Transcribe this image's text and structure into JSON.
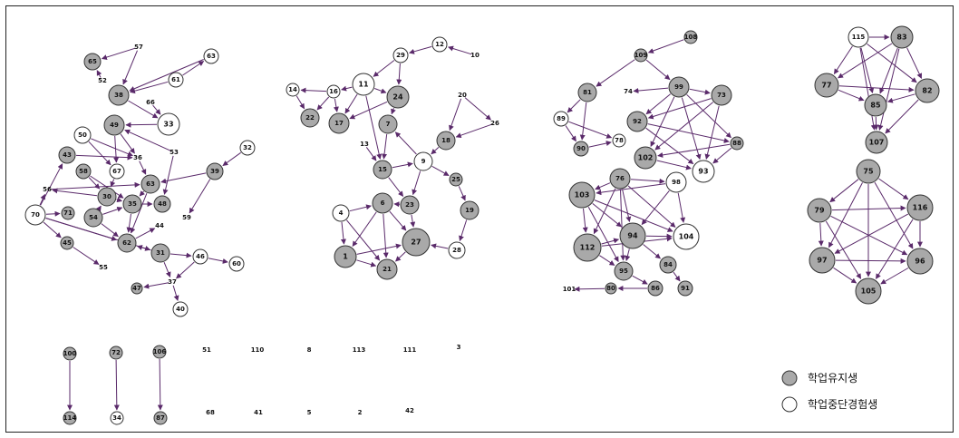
{
  "diagram": {
    "colors": {
      "retained": "#a9a9a9",
      "dropout": "#ffffff",
      "edge": "#5a2a6a"
    },
    "nodes": [
      {
        "id": "57",
        "t": "none"
      },
      {
        "id": "65",
        "t": "retained"
      },
      {
        "id": "63b",
        "label": "63",
        "t": "dropout"
      },
      {
        "id": "52",
        "t": "none"
      },
      {
        "id": "38",
        "t": "retained"
      },
      {
        "id": "61",
        "t": "dropout"
      },
      {
        "id": "66",
        "t": "none"
      },
      {
        "id": "33",
        "t": "dropout"
      },
      {
        "id": "49",
        "t": "retained"
      },
      {
        "id": "50",
        "t": "dropout"
      },
      {
        "id": "36",
        "t": "none"
      },
      {
        "id": "53",
        "t": "none"
      },
      {
        "id": "32",
        "t": "dropout"
      },
      {
        "id": "39",
        "t": "retained"
      },
      {
        "id": "43",
        "t": "retained"
      },
      {
        "id": "58",
        "t": "retained"
      },
      {
        "id": "67",
        "t": "dropout"
      },
      {
        "id": "63",
        "t": "retained"
      },
      {
        "id": "56",
        "t": "none"
      },
      {
        "id": "30",
        "t": "retained"
      },
      {
        "id": "35",
        "t": "retained"
      },
      {
        "id": "48",
        "t": "retained"
      },
      {
        "id": "54",
        "t": "retained"
      },
      {
        "id": "70",
        "t": "dropout"
      },
      {
        "id": "71",
        "t": "retained"
      },
      {
        "id": "64",
        "t": "retained"
      },
      {
        "id": "44",
        "t": "none"
      },
      {
        "id": "62",
        "t": "retained"
      },
      {
        "id": "45",
        "t": "retained"
      },
      {
        "id": "55",
        "t": "none"
      },
      {
        "id": "31",
        "t": "retained"
      },
      {
        "id": "46",
        "t": "dropout"
      },
      {
        "id": "60",
        "t": "dropout"
      },
      {
        "id": "59",
        "t": "none"
      },
      {
        "id": "47",
        "t": "retained"
      },
      {
        "id": "37",
        "t": "none"
      },
      {
        "id": "40",
        "t": "dropout"
      },
      {
        "id": "12",
        "t": "dropout"
      },
      {
        "id": "10",
        "t": "none"
      },
      {
        "id": "29",
        "t": "dropout"
      },
      {
        "id": "14",
        "t": "dropout"
      },
      {
        "id": "16",
        "t": "dropout"
      },
      {
        "id": "11",
        "t": "dropout"
      },
      {
        "id": "24",
        "t": "retained"
      },
      {
        "id": "22",
        "t": "retained"
      },
      {
        "id": "17",
        "t": "retained"
      },
      {
        "id": "7",
        "t": "retained"
      },
      {
        "id": "20",
        "t": "none"
      },
      {
        "id": "26",
        "t": "none"
      },
      {
        "id": "18",
        "t": "retained"
      },
      {
        "id": "13",
        "t": "none"
      },
      {
        "id": "9",
        "t": "dropout"
      },
      {
        "id": "15",
        "t": "retained"
      },
      {
        "id": "25",
        "t": "retained"
      },
      {
        "id": "4",
        "t": "dropout"
      },
      {
        "id": "6",
        "t": "retained"
      },
      {
        "id": "23",
        "t": "retained"
      },
      {
        "id": "19",
        "t": "retained"
      },
      {
        "id": "27",
        "t": "retained"
      },
      {
        "id": "28",
        "t": "dropout"
      },
      {
        "id": "1",
        "t": "retained"
      },
      {
        "id": "21",
        "t": "retained"
      },
      {
        "id": "108",
        "t": "retained"
      },
      {
        "id": "109",
        "t": "retained"
      },
      {
        "id": "81",
        "t": "retained"
      },
      {
        "id": "99",
        "t": "retained"
      },
      {
        "id": "74",
        "t": "none"
      },
      {
        "id": "73",
        "t": "retained"
      },
      {
        "id": "89",
        "t": "dropout"
      },
      {
        "id": "92",
        "t": "retained"
      },
      {
        "id": "90",
        "t": "retained"
      },
      {
        "id": "78",
        "t": "dropout"
      },
      {
        "id": "88",
        "t": "retained"
      },
      {
        "id": "102",
        "t": "retained"
      },
      {
        "id": "93",
        "t": "dropout"
      },
      {
        "id": "76",
        "t": "retained"
      },
      {
        "id": "98",
        "t": "dropout"
      },
      {
        "id": "103",
        "t": "retained"
      },
      {
        "id": "104",
        "t": "dropout"
      },
      {
        "id": "94",
        "t": "retained"
      },
      {
        "id": "112",
        "t": "retained"
      },
      {
        "id": "95",
        "t": "retained"
      },
      {
        "id": "84",
        "t": "retained"
      },
      {
        "id": "91",
        "t": "retained"
      },
      {
        "id": "101",
        "t": "none"
      },
      {
        "id": "80",
        "t": "retained"
      },
      {
        "id": "86",
        "t": "retained"
      },
      {
        "id": "115",
        "t": "dropout"
      },
      {
        "id": "83",
        "t": "retained"
      },
      {
        "id": "77",
        "t": "retained"
      },
      {
        "id": "82",
        "t": "retained"
      },
      {
        "id": "85",
        "t": "retained"
      },
      {
        "id": "107",
        "t": "retained"
      },
      {
        "id": "75",
        "t": "retained"
      },
      {
        "id": "79",
        "t": "retained"
      },
      {
        "id": "116",
        "t": "retained"
      },
      {
        "id": "97",
        "t": "retained"
      },
      {
        "id": "96",
        "t": "retained"
      },
      {
        "id": "105",
        "t": "retained"
      },
      {
        "id": "100",
        "t": "retained"
      },
      {
        "id": "114",
        "t": "retained"
      },
      {
        "id": "72",
        "t": "retained"
      },
      {
        "id": "34",
        "t": "dropout"
      },
      {
        "id": "106",
        "t": "retained"
      },
      {
        "id": "87",
        "t": "retained"
      }
    ],
    "isolates": [
      "51",
      "110",
      "8",
      "113",
      "111",
      "3",
      "68",
      "41",
      "5",
      "2",
      "42"
    ],
    "edges": [
      [
        "57",
        "65"
      ],
      [
        "57",
        "38"
      ],
      [
        "52",
        "65"
      ],
      [
        "63b",
        "38"
      ],
      [
        "61",
        "63b"
      ],
      [
        "61",
        "38"
      ],
      [
        "38",
        "33"
      ],
      [
        "66",
        "33"
      ],
      [
        "33",
        "49"
      ],
      [
        "49",
        "36"
      ],
      [
        "50",
        "36"
      ],
      [
        "36",
        "63"
      ],
      [
        "53",
        "49"
      ],
      [
        "53",
        "48"
      ],
      [
        "32",
        "39"
      ],
      [
        "39",
        "63"
      ],
      [
        "43",
        "36"
      ],
      [
        "50",
        "67"
      ],
      [
        "49",
        "67"
      ],
      [
        "67",
        "30"
      ],
      [
        "58",
        "30"
      ],
      [
        "58",
        "35"
      ],
      [
        "30",
        "35"
      ],
      [
        "30",
        "56"
      ],
      [
        "56",
        "63"
      ],
      [
        "63",
        "35"
      ],
      [
        "63",
        "62"
      ],
      [
        "35",
        "48"
      ],
      [
        "54",
        "30"
      ],
      [
        "54",
        "62"
      ],
      [
        "54",
        "35"
      ],
      [
        "39",
        "59"
      ],
      [
        "70",
        "43"
      ],
      [
        "70",
        "56"
      ],
      [
        "70",
        "71"
      ],
      [
        "70",
        "45"
      ],
      [
        "70",
        "62"
      ],
      [
        "70",
        "31"
      ],
      [
        "45",
        "55"
      ],
      [
        "62",
        "44"
      ],
      [
        "31",
        "62"
      ],
      [
        "31",
        "46"
      ],
      [
        "46",
        "60"
      ],
      [
        "46",
        "37"
      ],
      [
        "37",
        "47"
      ],
      [
        "37",
        "40"
      ],
      [
        "31",
        "37"
      ],
      [
        "35",
        "62"
      ],
      [
        "10",
        "12"
      ],
      [
        "12",
        "29"
      ],
      [
        "29",
        "24"
      ],
      [
        "29",
        "11"
      ],
      [
        "16",
        "14"
      ],
      [
        "14",
        "22"
      ],
      [
        "16",
        "22"
      ],
      [
        "16",
        "17"
      ],
      [
        "11",
        "17"
      ],
      [
        "11",
        "24"
      ],
      [
        "11",
        "16"
      ],
      [
        "24",
        "17"
      ],
      [
        "24",
        "7"
      ],
      [
        "11",
        "15"
      ],
      [
        "7",
        "15"
      ],
      [
        "9",
        "7"
      ],
      [
        "20",
        "18"
      ],
      [
        "20",
        "26"
      ],
      [
        "26",
        "18"
      ],
      [
        "18",
        "9"
      ],
      [
        "13",
        "15"
      ],
      [
        "15",
        "9"
      ],
      [
        "15",
        "23"
      ],
      [
        "9",
        "25"
      ],
      [
        "25",
        "19"
      ],
      [
        "19",
        "28"
      ],
      [
        "28",
        "27"
      ],
      [
        "9",
        "23"
      ],
      [
        "23",
        "27"
      ],
      [
        "23",
        "6"
      ],
      [
        "4",
        "6"
      ],
      [
        "4",
        "1"
      ],
      [
        "4",
        "21"
      ],
      [
        "6",
        "1"
      ],
      [
        "6",
        "21"
      ],
      [
        "6",
        "27"
      ],
      [
        "1",
        "21"
      ],
      [
        "1",
        "27"
      ],
      [
        "27",
        "21"
      ],
      [
        "108",
        "109"
      ],
      [
        "109",
        "81"
      ],
      [
        "109",
        "99"
      ],
      [
        "81",
        "89"
      ],
      [
        "81",
        "90"
      ],
      [
        "89",
        "90"
      ],
      [
        "89",
        "78"
      ],
      [
        "90",
        "78"
      ],
      [
        "99",
        "74"
      ],
      [
        "99",
        "73"
      ],
      [
        "99",
        "92"
      ],
      [
        "99",
        "102"
      ],
      [
        "99",
        "93"
      ],
      [
        "99",
        "88"
      ],
      [
        "73",
        "92"
      ],
      [
        "73",
        "93"
      ],
      [
        "73",
        "102"
      ],
      [
        "92",
        "88"
      ],
      [
        "92",
        "93"
      ],
      [
        "88",
        "102"
      ],
      [
        "88",
        "93"
      ],
      [
        "102",
        "93"
      ],
      [
        "76",
        "98"
      ],
      [
        "76",
        "103"
      ],
      [
        "76",
        "94"
      ],
      [
        "76",
        "112"
      ],
      [
        "76",
        "104"
      ],
      [
        "98",
        "94"
      ],
      [
        "98",
        "104"
      ],
      [
        "98",
        "103"
      ],
      [
        "103",
        "112"
      ],
      [
        "103",
        "94"
      ],
      [
        "103",
        "95"
      ],
      [
        "103",
        "104"
      ],
      [
        "112",
        "94"
      ],
      [
        "112",
        "95"
      ],
      [
        "94",
        "104"
      ],
      [
        "94",
        "95"
      ],
      [
        "94",
        "84"
      ],
      [
        "84",
        "91"
      ],
      [
        "95",
        "86"
      ],
      [
        "86",
        "80"
      ],
      [
        "80",
        "101"
      ],
      [
        "112",
        "104"
      ],
      [
        "76",
        "95"
      ],
      [
        "115",
        "83"
      ],
      [
        "115",
        "77"
      ],
      [
        "115",
        "85"
      ],
      [
        "115",
        "107"
      ],
      [
        "83",
        "77"
      ],
      [
        "83",
        "82"
      ],
      [
        "83",
        "85"
      ],
      [
        "83",
        "107"
      ],
      [
        "77",
        "82"
      ],
      [
        "77",
        "85"
      ],
      [
        "82",
        "85"
      ],
      [
        "82",
        "107"
      ],
      [
        "85",
        "107"
      ],
      [
        "115",
        "82"
      ],
      [
        "75",
        "79"
      ],
      [
        "75",
        "116"
      ],
      [
        "75",
        "97"
      ],
      [
        "75",
        "96"
      ],
      [
        "75",
        "105"
      ],
      [
        "79",
        "116"
      ],
      [
        "79",
        "97"
      ],
      [
        "79",
        "96"
      ],
      [
        "79",
        "105"
      ],
      [
        "116",
        "97"
      ],
      [
        "116",
        "96"
      ],
      [
        "116",
        "105"
      ],
      [
        "97",
        "96"
      ],
      [
        "97",
        "105"
      ],
      [
        "96",
        "105"
      ],
      [
        "100",
        "114"
      ],
      [
        "72",
        "34"
      ],
      [
        "106",
        "87"
      ]
    ],
    "legend": [
      {
        "label": "학업유지생",
        "t": "retained"
      },
      {
        "label": "학업중단경험생",
        "t": "dropout"
      }
    ]
  }
}
